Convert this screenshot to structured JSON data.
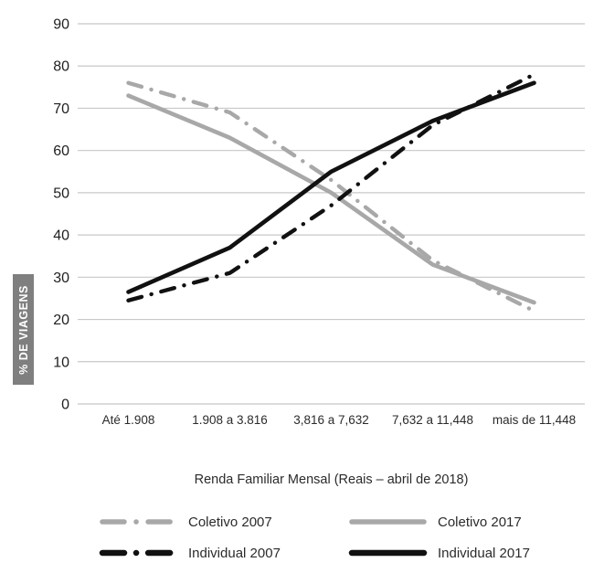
{
  "chart_data": {
    "type": "line",
    "title": "",
    "xlabel": "Renda Familiar Mensal (Reais – abril de 2018)",
    "ylabel": "% DE VIAGENS",
    "categories": [
      "Até 1.908",
      "1.908 a 3.816",
      "3,816 a 7,632",
      "7,632 a 11,448",
      "mais de 11,448"
    ],
    "yticks": [
      0,
      10,
      20,
      30,
      40,
      50,
      60,
      70,
      80,
      90
    ],
    "ylim": [
      0,
      90
    ],
    "grid": true,
    "legend_position": "bottom",
    "series": [
      {
        "name": "Coletivo 2007",
        "color": "#a8a8a8",
        "dash": "dashdot",
        "values": [
          76,
          69,
          53,
          34,
          22
        ]
      },
      {
        "name": "Coletivo 2017",
        "color": "#a8a8a8",
        "dash": "solid",
        "values": [
          73,
          63,
          50,
          33,
          24
        ]
      },
      {
        "name": "Individual 2007",
        "color": "#111111",
        "dash": "dashdot",
        "values": [
          24.5,
          31,
          47,
          66,
          78
        ]
      },
      {
        "name": "Individual 2017",
        "color": "#111111",
        "dash": "solid",
        "values": [
          26.5,
          37,
          55,
          67,
          76
        ]
      }
    ]
  },
  "colors": {
    "gridline": "#c8c8c8",
    "tick_text": "#1f1f1f",
    "ylabel_bg": "#7f7f7f",
    "ylabel_text": "#ffffff"
  }
}
